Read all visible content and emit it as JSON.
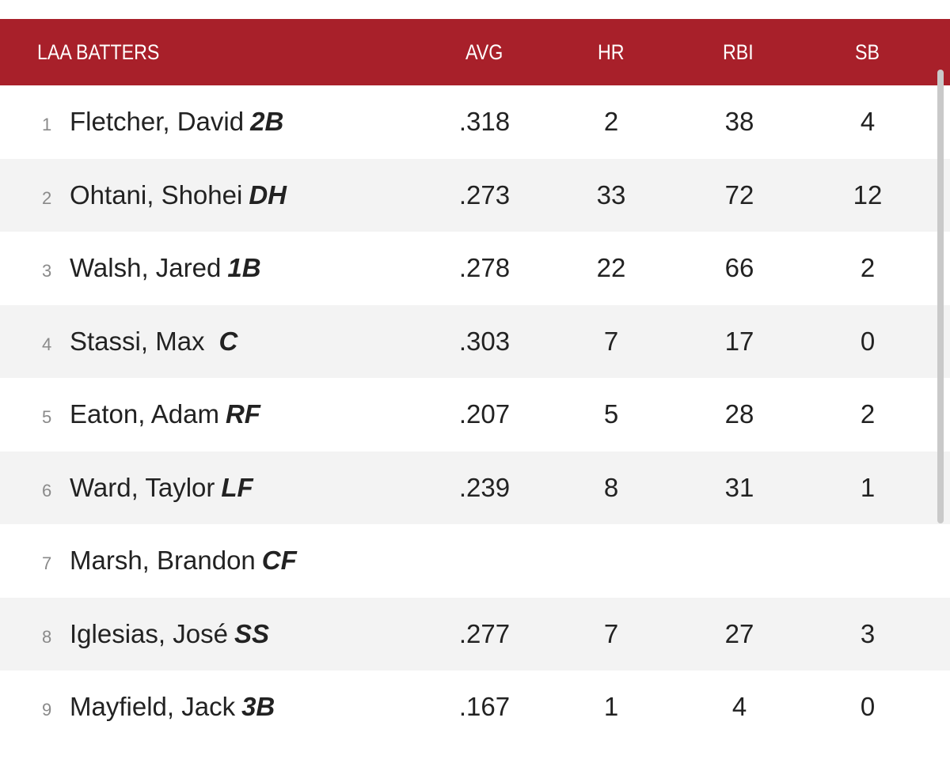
{
  "header": {
    "title": "LAA BATTERS",
    "avg": "AVG",
    "hr": "HR",
    "rbi": "RBI",
    "sb": "SB"
  },
  "colors": {
    "header_bg": "#a8202a",
    "alt_row_bg": "#f3f3f3"
  },
  "rows": [
    {
      "order": "1",
      "name": "Fletcher, David",
      "pos": "2B",
      "avg": ".318",
      "hr": "2",
      "rbi": "38",
      "sb": "4"
    },
    {
      "order": "2",
      "name": "Ohtani, Shohei",
      "pos": "DH",
      "avg": ".273",
      "hr": "33",
      "rbi": "72",
      "sb": "12"
    },
    {
      "order": "3",
      "name": "Walsh, Jared",
      "pos": "1B",
      "avg": ".278",
      "hr": "22",
      "rbi": "66",
      "sb": "2"
    },
    {
      "order": "4",
      "name": "Stassi, Max",
      "pos": "C",
      "avg": ".303",
      "hr": "7",
      "rbi": "17",
      "sb": "0"
    },
    {
      "order": "5",
      "name": "Eaton, Adam",
      "pos": "RF",
      "avg": ".207",
      "hr": "5",
      "rbi": "28",
      "sb": "2"
    },
    {
      "order": "6",
      "name": "Ward, Taylor",
      "pos": "LF",
      "avg": ".239",
      "hr": "8",
      "rbi": "31",
      "sb": "1"
    },
    {
      "order": "7",
      "name": "Marsh, Brandon",
      "pos": "CF",
      "avg": "",
      "hr": "",
      "rbi": "",
      "sb": ""
    },
    {
      "order": "8",
      "name": "Iglesias, José",
      "pos": "SS",
      "avg": ".277",
      "hr": "7",
      "rbi": "27",
      "sb": "3"
    },
    {
      "order": "9",
      "name": "Mayfield, Jack",
      "pos": "3B",
      "avg": ".167",
      "hr": "1",
      "rbi": "4",
      "sb": "0"
    }
  ]
}
